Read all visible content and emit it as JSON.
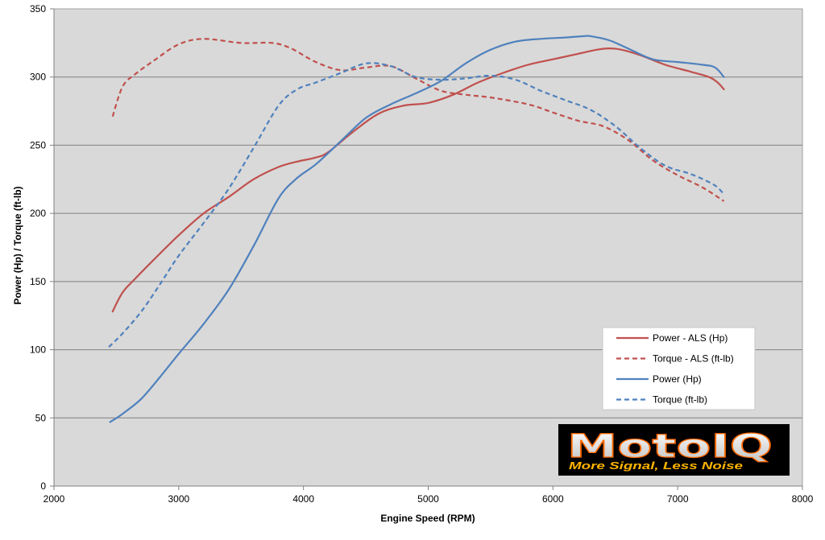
{
  "chart_data": {
    "type": "line",
    "xlabel": "Engine Speed (RPM)",
    "ylabel": "Power (Hp) / Torque (ft-lb)",
    "xlim": [
      2000,
      8000
    ],
    "ylim": [
      0,
      350
    ],
    "xticks": [
      2000,
      3000,
      4000,
      5000,
      6000,
      7000,
      8000
    ],
    "yticks": [
      0,
      50,
      100,
      150,
      200,
      250,
      300,
      350
    ],
    "grid": "horizontal",
    "legend_position": "lower-right",
    "series": [
      {
        "name": "Power - ALS (Hp)",
        "color": "#c0504d",
        "dash": "solid",
        "x": [
          2470,
          2550,
          2650,
          2800,
          3000,
          3200,
          3400,
          3600,
          3800,
          3950,
          4100,
          4200,
          4400,
          4600,
          4800,
          5000,
          5200,
          5400,
          5600,
          5800,
          6000,
          6200,
          6350,
          6450,
          6550,
          6700,
          6900,
          7100,
          7250,
          7320,
          7370
        ],
        "y": [
          128,
          142,
          152,
          166,
          184,
          200,
          212,
          225,
          234,
          238,
          241,
          245,
          260,
          273,
          279,
          281,
          287,
          296,
          303,
          309,
          313,
          317,
          320,
          321,
          320,
          316,
          309,
          304,
          300,
          296,
          291
        ]
      },
      {
        "name": "Torque - ALS (ft-lb)",
        "color": "#c0504d",
        "dash": "dashed",
        "x": [
          2470,
          2550,
          2650,
          2800,
          3000,
          3200,
          3500,
          3750,
          3900,
          4100,
          4300,
          4500,
          4700,
          4900,
          5100,
          5300,
          5500,
          5800,
          6000,
          6200,
          6400,
          6600,
          6800,
          7000,
          7200,
          7370
        ],
        "y": [
          271,
          293,
          302,
          312,
          324,
          328,
          325,
          325,
          321,
          311,
          305,
          307,
          308,
          299,
          290,
          287,
          285,
          280,
          274,
          268,
          264,
          254,
          239,
          228,
          219,
          209
        ]
      },
      {
        "name": "Power (Hp)",
        "color": "#4f81bd",
        "dash": "solid",
        "x": [
          2450,
          2550,
          2700,
          2850,
          3000,
          3200,
          3400,
          3600,
          3800,
          3950,
          4100,
          4300,
          4500,
          4700,
          4900,
          5100,
          5300,
          5500,
          5700,
          5900,
          6100,
          6250,
          6300,
          6450,
          6600,
          6800,
          7000,
          7200,
          7300,
          7370
        ],
        "y": [
          47,
          53,
          64,
          80,
          97,
          119,
          144,
          176,
          211,
          226,
          236,
          253,
          270,
          280,
          288,
          297,
          310,
          320,
          326,
          328,
          329,
          330,
          330,
          327,
          321,
          313,
          311,
          309,
          307,
          300
        ]
      },
      {
        "name": "Torque (ft-lb)",
        "color": "#4f81bd",
        "dash": "dashed",
        "x": [
          2440,
          2550,
          2700,
          2850,
          3000,
          3200,
          3400,
          3600,
          3800,
          3950,
          4100,
          4300,
          4500,
          4700,
          4900,
          5100,
          5300,
          5500,
          5700,
          5900,
          6100,
          6300,
          6500,
          6700,
          6900,
          7100,
          7250,
          7320,
          7370
        ],
        "y": [
          102,
          112,
          128,
          148,
          169,
          193,
          218,
          248,
          279,
          291,
          296,
          303,
          310,
          308,
          300,
          298,
          299,
          301,
          298,
          290,
          283,
          276,
          264,
          248,
          235,
          229,
          223,
          219,
          214
        ]
      }
    ]
  },
  "logo": {
    "brand": "MotoIQ",
    "tagline": "More Signal, Less Noise"
  }
}
